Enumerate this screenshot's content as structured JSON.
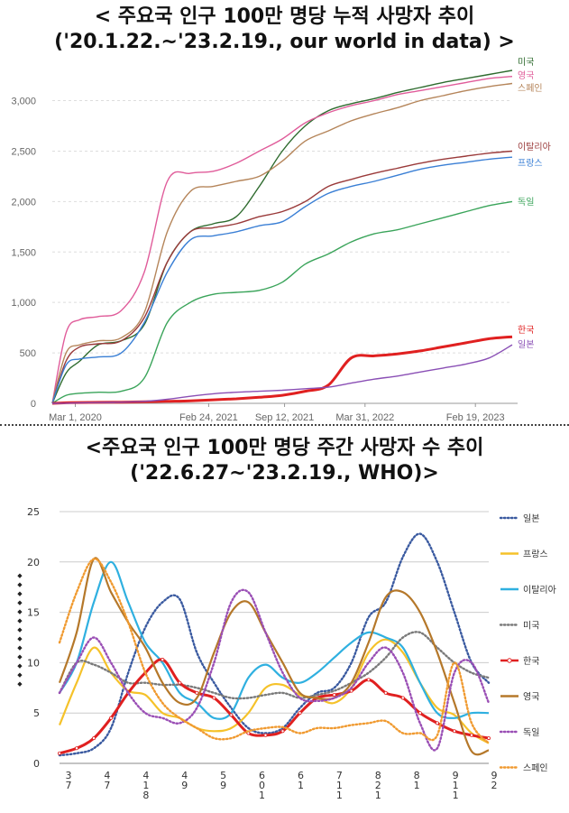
{
  "titles": {
    "top_line1": "< 주요국 인구 100만 명당 누적 사망자 추이",
    "top_line2": "('20.1.22.~'23.2.19., our world in data) >",
    "bottom_line1": "<주요국 인구 100만 명당 주간 사망자 수 추이",
    "bottom_line2": "('22.6.27~'23.2.19., WHO)>"
  },
  "chart_data": [
    {
      "type": "line",
      "title": "< 주요국 인구 100만 명당 누적 사망자 추이 ('20.1.22.~'23.2.19., our world in data) >",
      "x_tick_labels": [
        "Mar 1, 2020",
        "Feb 24, 2021",
        "Sep 12, 2021",
        "Mar 31, 2022",
        "Feb 19, 2023"
      ],
      "y_ticks": [
        0,
        500,
        1000,
        1500,
        2000,
        2500,
        3000
      ],
      "y_tick_labels": [
        "0",
        "500",
        "1,000",
        "1,500",
        "2,000",
        "2,500",
        "3,000"
      ],
      "ylim": [
        0,
        3300
      ],
      "x": [
        0,
        0.03,
        0.06,
        0.1,
        0.15,
        0.2,
        0.25,
        0.3,
        0.35,
        0.4,
        0.45,
        0.5,
        0.55,
        0.6,
        0.65,
        0.7,
        0.75,
        0.8,
        0.85,
        0.9,
        0.95,
        1.0
      ],
      "series": [
        {
          "name": "미국",
          "color": "#2e6b2e",
          "values": [
            0,
            300,
            420,
            580,
            620,
            780,
            1400,
            1700,
            1780,
            1850,
            2150,
            2500,
            2750,
            2900,
            2970,
            3020,
            3080,
            3130,
            3180,
            3220,
            3260,
            3300
          ]
        },
        {
          "name": "영국",
          "color": "#e05c9a",
          "values": [
            0,
            700,
            830,
            860,
            920,
            1300,
            2200,
            2280,
            2300,
            2380,
            2500,
            2620,
            2780,
            2880,
            2950,
            3000,
            3060,
            3100,
            3140,
            3180,
            3220,
            3240
          ]
        },
        {
          "name": "스페인",
          "color": "#b5855a",
          "values": [
            0,
            500,
            580,
            620,
            650,
            900,
            1700,
            2100,
            2150,
            2200,
            2250,
            2400,
            2600,
            2700,
            2800,
            2870,
            2930,
            3000,
            3050,
            3100,
            3140,
            3170
          ]
        },
        {
          "name": "이탈리아",
          "color": "#9a3a3a",
          "values": [
            0,
            420,
            560,
            590,
            620,
            850,
            1400,
            1700,
            1740,
            1780,
            1850,
            1900,
            2000,
            2150,
            2220,
            2280,
            2330,
            2380,
            2420,
            2450,
            2480,
            2500
          ]
        },
        {
          "name": "프랑스",
          "color": "#3a7fd5",
          "values": [
            0,
            380,
            440,
            460,
            500,
            800,
            1300,
            1620,
            1660,
            1700,
            1760,
            1800,
            1950,
            2080,
            2150,
            2200,
            2260,
            2320,
            2360,
            2390,
            2420,
            2440
          ]
        },
        {
          "name": "독일",
          "color": "#3aa45a",
          "values": [
            0,
            80,
            100,
            110,
            120,
            250,
            800,
            1000,
            1080,
            1100,
            1120,
            1200,
            1380,
            1480,
            1600,
            1680,
            1720,
            1780,
            1840,
            1900,
            1960,
            2000
          ]
        },
        {
          "name": "한국",
          "color": "#e02020",
          "values": [
            0,
            5,
            8,
            10,
            12,
            15,
            20,
            25,
            35,
            45,
            60,
            80,
            120,
            180,
            450,
            470,
            490,
            520,
            560,
            600,
            640,
            660
          ]
        },
        {
          "name": "일본",
          "color": "#8a4fb5",
          "values": [
            0,
            2,
            5,
            8,
            12,
            20,
            40,
            70,
            95,
            110,
            120,
            130,
            145,
            160,
            200,
            240,
            270,
            310,
            350,
            390,
            450,
            580
          ]
        }
      ]
    },
    {
      "type": "line",
      "title": "<주요국 인구 100만 명당 주간 사망자 수 추이 ('22.6.27~'23.2.19., WHO)>",
      "x_tick_labels": [
        [
          "3",
          "7"
        ],
        [
          "4",
          "7"
        ],
        [
          "4",
          "1",
          "8"
        ],
        [
          "4",
          "9"
        ],
        [
          "5",
          "9"
        ],
        [
          "6",
          "0",
          "1"
        ],
        [
          "6",
          "1"
        ],
        [
          "7",
          "1",
          "1"
        ],
        [
          "8",
          "2",
          "1"
        ],
        [
          "8",
          "1"
        ],
        [
          "9",
          "1",
          "1"
        ],
        [
          "9",
          "2"
        ]
      ],
      "y_ticks": [
        0,
        5,
        10,
        15,
        20,
        25
      ],
      "y_tick_labels": [
        "0",
        "5",
        "10",
        "15",
        "20",
        "25"
      ],
      "ylim": [
        0,
        25
      ],
      "x": [
        0,
        0.04,
        0.08,
        0.12,
        0.16,
        0.2,
        0.24,
        0.28,
        0.32,
        0.36,
        0.4,
        0.44,
        0.48,
        0.52,
        0.56,
        0.6,
        0.64,
        0.68,
        0.72,
        0.76,
        0.8,
        0.84,
        0.88,
        0.92,
        0.96,
        1.0
      ],
      "series": [
        {
          "name": "일본",
          "color": "#3a5aa0",
          "style": "dotted",
          "values": [
            0.8,
            1.0,
            1.5,
            3.5,
            9.0,
            13.5,
            16.0,
            16.3,
            11.0,
            8.0,
            5.5,
            3.5,
            3.0,
            3.5,
            5.5,
            7.0,
            7.5,
            10.0,
            14.5,
            16.0,
            20.5,
            22.8,
            20.0,
            15.0,
            10.0,
            8.0
          ]
        },
        {
          "name": "프랑스",
          "color": "#f5c22a",
          "style": "solid",
          "values": [
            3.8,
            8.0,
            11.5,
            9.0,
            7.2,
            6.8,
            5.0,
            4.5,
            3.5,
            3.2,
            3.5,
            5.0,
            7.5,
            7.8,
            6.8,
            6.5,
            6.0,
            7.5,
            11.0,
            12.3,
            11.0,
            8.0,
            5.5,
            4.8,
            3.0,
            2.0
          ]
        },
        {
          "name": "이탈리아",
          "color": "#2fb0e0",
          "style": "solid",
          "values": [
            7.0,
            10.0,
            16.0,
            20.0,
            16.0,
            12.0,
            10.0,
            7.0,
            6.0,
            4.5,
            5.0,
            8.5,
            9.8,
            8.5,
            8.0,
            9.0,
            10.5,
            12.0,
            13.0,
            12.5,
            11.5,
            8.0,
            5.0,
            4.5,
            5.0,
            5.0
          ]
        },
        {
          "name": "미국",
          "color": "#7a7a7a",
          "style": "dotted",
          "values": [
            7.0,
            10.0,
            9.8,
            9.0,
            8.0,
            8.0,
            7.8,
            7.8,
            7.5,
            7.0,
            6.5,
            6.5,
            6.8,
            7.0,
            6.5,
            6.8,
            7.2,
            8.0,
            9.0,
            10.5,
            12.5,
            13.0,
            11.5,
            10.0,
            9.0,
            8.5
          ]
        },
        {
          "name": "한국",
          "color": "#e02020",
          "style": "solid-marked",
          "values": [
            1.0,
            1.5,
            2.5,
            4.5,
            7.0,
            9.0,
            10.3,
            8.0,
            7.0,
            6.5,
            4.8,
            3.0,
            2.8,
            3.2,
            5.0,
            6.5,
            6.8,
            7.2,
            8.3,
            7.0,
            6.5,
            5.0,
            4.0,
            3.2,
            2.8,
            2.5
          ]
        },
        {
          "name": "영국",
          "color": "#b5782a",
          "style": "solid",
          "values": [
            8.0,
            13.0,
            20.3,
            17.0,
            14.0,
            11.5,
            8.0,
            6.0,
            6.5,
            11.0,
            15.0,
            16.0,
            13.0,
            10.0,
            7.0,
            6.5,
            6.5,
            8.0,
            12.0,
            16.5,
            17.0,
            15.0,
            11.0,
            6.0,
            1.2,
            1.3
          ]
        },
        {
          "name": "독일",
          "color": "#9a4fb5",
          "style": "dotted",
          "values": [
            7.0,
            10.0,
            12.5,
            10.0,
            7.0,
            5.0,
            4.5,
            4.0,
            5.5,
            10.0,
            16.0,
            17.0,
            13.0,
            9.0,
            6.5,
            6.2,
            6.5,
            7.5,
            10.0,
            11.5,
            9.0,
            4.0,
            1.5,
            9.0,
            10.0,
            6.0
          ]
        },
        {
          "name": "스페인",
          "color": "#f09a30",
          "style": "dotted",
          "values": [
            12.0,
            17.0,
            20.3,
            18.0,
            14.0,
            9.0,
            6.0,
            4.5,
            3.5,
            2.5,
            2.5,
            3.2,
            3.5,
            3.6,
            3.0,
            3.5,
            3.5,
            3.8,
            4.0,
            4.2,
            3.0,
            3.0,
            2.8,
            10.0,
            4.0,
            2.0
          ]
        }
      ]
    }
  ]
}
